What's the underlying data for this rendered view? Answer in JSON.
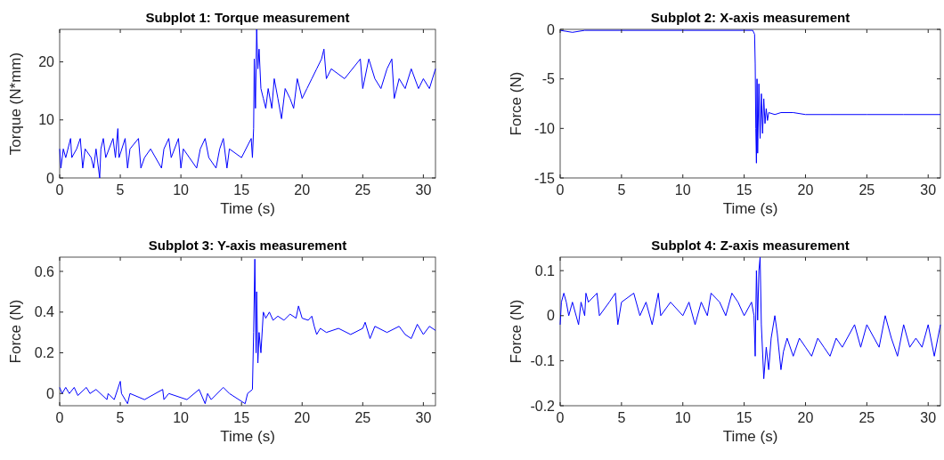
{
  "chart_data": [
    {
      "type": "line",
      "title": "Subplot 1: Torque measurement",
      "xlabel": "Time (s)",
      "ylabel": "Torque (N*mm)",
      "xlim": [
        0,
        31
      ],
      "xticks": [
        0,
        5,
        10,
        15,
        20,
        25,
        30
      ],
      "ylim": [
        0,
        25.6
      ],
      "yticks": [
        0,
        10,
        20
      ],
      "x": [
        0,
        0.1,
        0.3,
        0.5,
        0.9,
        1.0,
        1.4,
        1.7,
        1.9,
        2.1,
        2.6,
        2.8,
        3.0,
        3.3,
        3.4,
        3.6,
        3.8,
        4.4,
        4.6,
        4.8,
        4.9,
        5.4,
        5.6,
        5.8,
        6.5,
        6.7,
        7.0,
        7.5,
        8.4,
        8.6,
        9.0,
        9.2,
        9.8,
        10.0,
        10.2,
        11.3,
        11.6,
        12.0,
        12.3,
        12.9,
        13.2,
        13.5,
        13.8,
        14.0,
        15.0,
        15.8,
        15.9,
        16.0,
        16.05,
        16.15,
        16.25,
        16.35,
        16.45,
        16.6,
        16.8,
        17.0,
        17.2,
        17.5,
        17.7,
        18.0,
        18.3,
        18.6,
        19.0,
        19.3,
        19.6,
        20.0,
        20.4,
        20.8,
        21.2,
        21.6,
        21.8,
        22.0,
        22.4,
        23.5,
        24.8,
        25.0,
        25.5,
        26.0,
        26.5,
        27.0,
        27.4,
        27.6,
        28.0,
        28.5,
        29.0,
        29.6,
        30.0,
        30.5,
        31
      ],
      "series": [
        {
          "color": "#0000ff",
          "values": [
            5,
            1.7,
            5,
            3.5,
            6.8,
            3.5,
            5,
            6.8,
            1.7,
            5,
            3.5,
            1.7,
            5,
            0,
            5,
            6.8,
            3.5,
            6.8,
            3.5,
            8.5,
            3.5,
            6.8,
            1.7,
            5,
            6.8,
            1.7,
            3.5,
            5,
            1.7,
            5,
            6.8,
            3.5,
            6.8,
            1.7,
            5,
            1.7,
            5,
            6.8,
            3.5,
            1.7,
            5,
            6.8,
            1.7,
            5,
            3.5,
            6.8,
            3.5,
            8.5,
            20.5,
            12,
            25.6,
            18.8,
            22.2,
            15.4,
            13.7,
            12,
            15.4,
            12,
            17.1,
            13.7,
            10.2,
            15.4,
            13.7,
            12,
            17.1,
            13.7,
            15.4,
            17.1,
            18.8,
            20.5,
            22.2,
            17.1,
            18.8,
            17.1,
            20.5,
            15.4,
            20.5,
            17.1,
            15.4,
            18.8,
            20.5,
            13.7,
            17.1,
            15.4,
            18.8,
            15.4,
            17.1,
            15.4,
            18.8
          ]
        }
      ]
    },
    {
      "type": "line",
      "title": "Subplot 2: X-axis measurement",
      "xlabel": "Time (s)",
      "ylabel": "Force (N)",
      "xlim": [
        0,
        31
      ],
      "xticks": [
        0,
        5,
        10,
        15,
        20,
        25,
        30
      ],
      "ylim": [
        -15,
        0
      ],
      "yticks": [
        -15,
        -10,
        -5,
        0
      ],
      "x": [
        0,
        0.5,
        1,
        2,
        5,
        10,
        15,
        15.7,
        15.85,
        15.9,
        15.95,
        16.0,
        16.05,
        16.1,
        16.2,
        16.3,
        16.4,
        16.5,
        16.6,
        16.7,
        16.8,
        16.9,
        17,
        17.5,
        18,
        19,
        20,
        22,
        25,
        28,
        31
      ],
      "series": [
        {
          "color": "#0000ff",
          "values": [
            -0.1,
            -0.2,
            -0.3,
            -0.1,
            -0.1,
            -0.1,
            -0.1,
            -0.1,
            -0.5,
            -3.5,
            -10,
            -13.5,
            -5,
            -12.5,
            -5.5,
            -11,
            -6.5,
            -10.5,
            -7,
            -9.5,
            -8,
            -9.2,
            -8.4,
            -8.6,
            -8.4,
            -8.4,
            -8.6,
            -8.6,
            -8.6,
            -8.6,
            -8.6
          ]
        }
      ]
    },
    {
      "type": "line",
      "title": "Subplot 3: Y-axis measurement",
      "xlabel": "Time (s)",
      "ylabel": "Force (N)",
      "xlim": [
        0,
        31
      ],
      "xticks": [
        0,
        5,
        10,
        15,
        20,
        25,
        30
      ],
      "ylim": [
        -0.06,
        0.67
      ],
      "yticks": [
        0,
        0.2,
        0.4,
        0.6
      ],
      "x": [
        0,
        0.2,
        0.5,
        0.8,
        1.2,
        1.5,
        2.2,
        2.5,
        3,
        3.9,
        4,
        4.5,
        5.0,
        5.1,
        5.6,
        5.8,
        7,
        8.5,
        8.6,
        9,
        10.5,
        11.5,
        12,
        12.2,
        12.5,
        13.5,
        14,
        15.3,
        15.5,
        15.9,
        16.0,
        16.1,
        16.2,
        16.25,
        16.35,
        16.45,
        16.6,
        16.8,
        17.0,
        17.3,
        17.6,
        18,
        18.5,
        19,
        19.5,
        19.7,
        20,
        20.5,
        20.8,
        21.0,
        21.2,
        21.5,
        22,
        23,
        24,
        25,
        25.2,
        25.6,
        26,
        27,
        28,
        28.5,
        29,
        29.5,
        30,
        30.5,
        31
      ],
      "series": [
        {
          "color": "#0000ff",
          "values": [
            0.03,
            0,
            0.03,
            0,
            0.03,
            -0.01,
            0.03,
            0,
            0.02,
            -0.03,
            0,
            -0.03,
            0.06,
            0,
            -0.05,
            0,
            -0.03,
            0.02,
            -0.03,
            0,
            -0.03,
            0.02,
            -0.05,
            0,
            -0.03,
            0.03,
            0,
            -0.05,
            0,
            0.02,
            0.3,
            0.66,
            0.2,
            0.5,
            0.15,
            0.3,
            0.2,
            0.4,
            0.37,
            0.4,
            0.36,
            0.38,
            0.36,
            0.39,
            0.37,
            0.43,
            0.37,
            0.36,
            0.38,
            0.33,
            0.29,
            0.32,
            0.3,
            0.32,
            0.29,
            0.32,
            0.35,
            0.27,
            0.33,
            0.3,
            0.33,
            0.29,
            0.27,
            0.34,
            0.29,
            0.33,
            0.31
          ]
        }
      ]
    },
    {
      "type": "line",
      "title": "Subplot 4: Z-axis measurement",
      "xlabel": "Time (s)",
      "ylabel": "Force (N)",
      "xlim": [
        0,
        31
      ],
      "xticks": [
        0,
        5,
        10,
        15,
        20,
        25,
        30
      ],
      "ylim": [
        -0.2,
        0.13
      ],
      "yticks": [
        -0.2,
        -0.1,
        0,
        0.1
      ],
      "x": [
        0,
        0.1,
        0.3,
        0.5,
        0.7,
        1,
        1.5,
        1.7,
        2,
        2.1,
        2.3,
        3,
        3.2,
        4,
        4.5,
        4.7,
        5,
        6,
        6.5,
        7,
        7.5,
        8,
        8.2,
        9,
        10,
        10.5,
        11,
        11.5,
        12,
        12.3,
        13,
        13.5,
        14,
        14.5,
        15,
        15.6,
        15.8,
        15.9,
        16.0,
        16.1,
        16.2,
        16.3,
        16.4,
        16.6,
        16.8,
        17,
        17.2,
        17.5,
        17.7,
        18,
        18.2,
        18.5,
        19,
        19.5,
        20,
        20.5,
        21,
        21.5,
        22,
        22.5,
        23,
        24,
        24.5,
        25,
        26,
        26.5,
        27,
        27.5,
        28,
        28.5,
        29,
        29.5,
        30,
        30.5,
        31
      ],
      "series": [
        {
          "color": "#0000ff",
          "values": [
            -0.02,
            0.03,
            0.05,
            0.03,
            0,
            0.03,
            -0.02,
            0.03,
            0,
            0.05,
            0.03,
            0.05,
            0,
            0.03,
            0.05,
            -0.02,
            0.03,
            0.05,
            0,
            0.03,
            -0.02,
            0.05,
            0,
            0.03,
            0,
            0.03,
            -0.02,
            0.03,
            0,
            0.05,
            0.03,
            0,
            0.05,
            0.03,
            0,
            0.03,
            0,
            -0.09,
            0.1,
            -0.01,
            0.1,
            0.13,
            -0.02,
            -0.14,
            -0.07,
            -0.12,
            -0.05,
            0,
            -0.04,
            -0.12,
            -0.08,
            -0.05,
            -0.09,
            -0.05,
            -0.07,
            -0.09,
            -0.05,
            -0.07,
            -0.09,
            -0.05,
            -0.07,
            -0.02,
            -0.07,
            -0.02,
            -0.07,
            0,
            -0.05,
            -0.09,
            -0.02,
            -0.07,
            -0.05,
            -0.07,
            -0.02,
            -0.09,
            -0.02
          ]
        }
      ]
    }
  ]
}
